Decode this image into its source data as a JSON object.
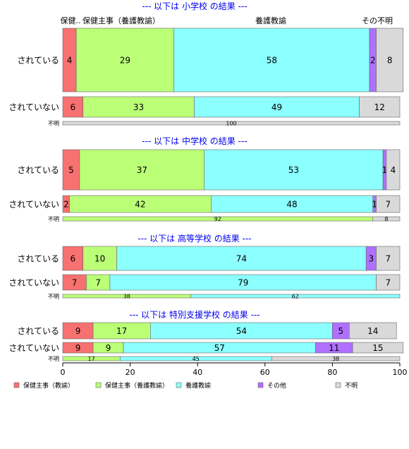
{
  "chart_data": {
    "type": "bar",
    "orientation": "horizontal",
    "stacked": true,
    "xlim": [
      0,
      100
    ],
    "xticks": [
      0,
      20,
      40,
      60,
      80,
      100
    ],
    "colors": {
      "保健主事（教諭）": "#f87171",
      "保健主事（養護教諭）": "#bbff77",
      "養護教諭": "#8cffff",
      "その他": "#b070ff",
      "不明": "#d9d9d9"
    },
    "categories": [
      "保健主事（教諭）",
      "保健主事（養護教諭）",
      "養護教諭",
      "その他",
      "不明"
    ],
    "top_labels": [
      "保健..",
      "保健主事（養護教諭）",
      "養護教諭",
      "その不明"
    ],
    "groups": [
      {
        "heading": "--- 以下は 小学校 の結果 ---",
        "rows": [
          {
            "label": "されている",
            "values": [
              4,
              29,
              58,
              2,
              8
            ]
          },
          {
            "label": "されていない",
            "values": [
              6,
              33,
              49,
              0,
              12
            ]
          }
        ],
        "unknown": {
          "label": "不明",
          "values": [
            0,
            0,
            0,
            0,
            100
          ]
        }
      },
      {
        "heading": "--- 以下は 中学校 の結果 ---",
        "rows": [
          {
            "label": "されている",
            "values": [
              5,
              37,
              53,
              1,
              4
            ]
          },
          {
            "label": "されていない",
            "values": [
              2,
              42,
              48,
              1,
              7
            ]
          }
        ],
        "unknown": {
          "label": "不明",
          "values": [
            0,
            92,
            0,
            0,
            8
          ]
        }
      },
      {
        "heading": "--- 以下は 高等学校 の結果 ---",
        "rows": [
          {
            "label": "されている",
            "values": [
              6,
              10,
              74,
              3,
              7
            ]
          },
          {
            "label": "されていない",
            "values": [
              7,
              7,
              79,
              0,
              7
            ]
          }
        ],
        "unknown": {
          "label": "不明",
          "values": [
            0,
            38,
            62,
            0,
            0
          ]
        }
      },
      {
        "heading": "--- 以下は 特別支援学校 の結果 ---",
        "rows": [
          {
            "label": "されている",
            "values": [
              9,
              17,
              54,
              5,
              14
            ]
          },
          {
            "label": "されていない",
            "values": [
              9,
              9,
              57,
              11,
              15
            ]
          }
        ],
        "unknown": {
          "label": "不明",
          "values": [
            0,
            17,
            45,
            0,
            38
          ]
        }
      }
    ],
    "legend": [
      {
        "label": "保健主事（教諭）",
        "color": "#f87171"
      },
      {
        "label": "保健主事（養護教諭）",
        "color": "#bbff77"
      },
      {
        "label": "養護教諭",
        "color": "#8cffff"
      },
      {
        "label": "その他",
        "color": "#b070ff"
      },
      {
        "label": "不明",
        "color": "#d9d9d9"
      }
    ]
  }
}
